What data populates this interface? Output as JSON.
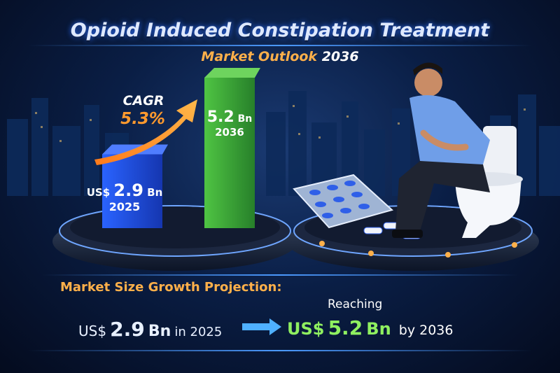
{
  "header": {
    "title": "Opioid Induced Constipation Treatment",
    "subtitle_main": "Market Outlook",
    "subtitle_year": "2036"
  },
  "chart_data": {
    "type": "bar",
    "categories": [
      "2025",
      "2036"
    ],
    "values": [
      2.9,
      5.2
    ],
    "value_labels": [
      "US$ 2.9 Bn",
      "5.2 Bn"
    ],
    "unit": "Bn",
    "colors": [
      "#1f4fe0",
      "#3fa83a"
    ],
    "cagr_label": "CAGR",
    "cagr_value": "5.3%"
  },
  "bars": {
    "bar1": {
      "prefix": "US$",
      "value": "2.9",
      "unit": "Bn",
      "year": "2025"
    },
    "bar2": {
      "value": "5.2",
      "unit": "Bn",
      "year": "2036"
    }
  },
  "projection": {
    "heading": "Market Size Growth Projection:",
    "start_prefix": "US$",
    "start_value": "2.9",
    "start_unit": "Bn",
    "start_suffix": "in 2025",
    "reaching": "Reaching",
    "end_prefix": "US$",
    "end_value": "5.2",
    "end_unit": "Bn",
    "end_suffix": "by 2036"
  },
  "colors": {
    "accent_orange": "#ffb04a",
    "accent_green": "#6fe04a",
    "glow_blue": "#4c9aff"
  },
  "icons": [
    "growth-arrow-icon",
    "right-arrow-icon",
    "pill-blister-icon",
    "toilet-icon",
    "patient-figure-icon"
  ]
}
